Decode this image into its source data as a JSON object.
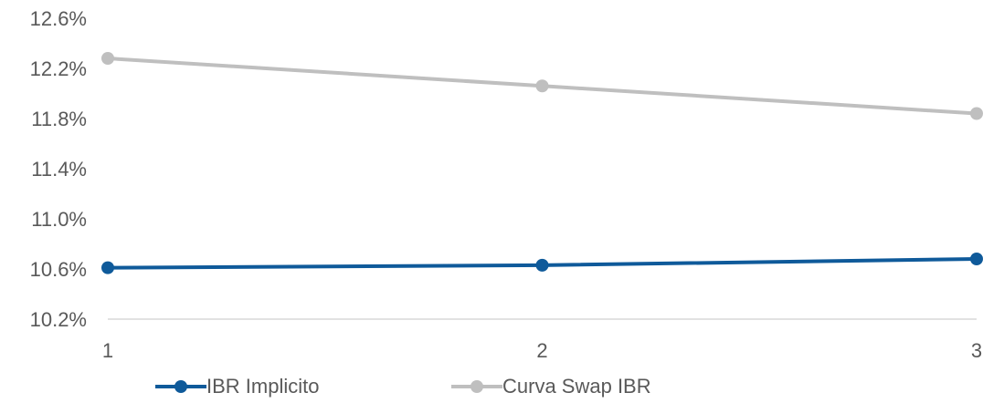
{
  "chart_data": {
    "type": "line",
    "title": "",
    "xlabel": "",
    "ylabel": "",
    "x": [
      "1",
      "2",
      "3"
    ],
    "ylim": [
      10.2,
      12.6
    ],
    "yticks": [
      "10.2%",
      "10.6%",
      "11.0%",
      "11.4%",
      "11.8%",
      "12.2%",
      "12.6%"
    ],
    "ytick_values": [
      10.2,
      10.6,
      11.0,
      11.4,
      11.8,
      12.2,
      12.6
    ],
    "grid": false,
    "legend_position": "bottom",
    "series": [
      {
        "name": "IBR Implicito",
        "color": "#0F5A9A",
        "values": [
          10.61,
          10.63,
          10.68
        ]
      },
      {
        "name": "Curva Swap IBR",
        "color": "#BFBFBF",
        "values": [
          12.28,
          12.06,
          11.84
        ]
      }
    ]
  }
}
